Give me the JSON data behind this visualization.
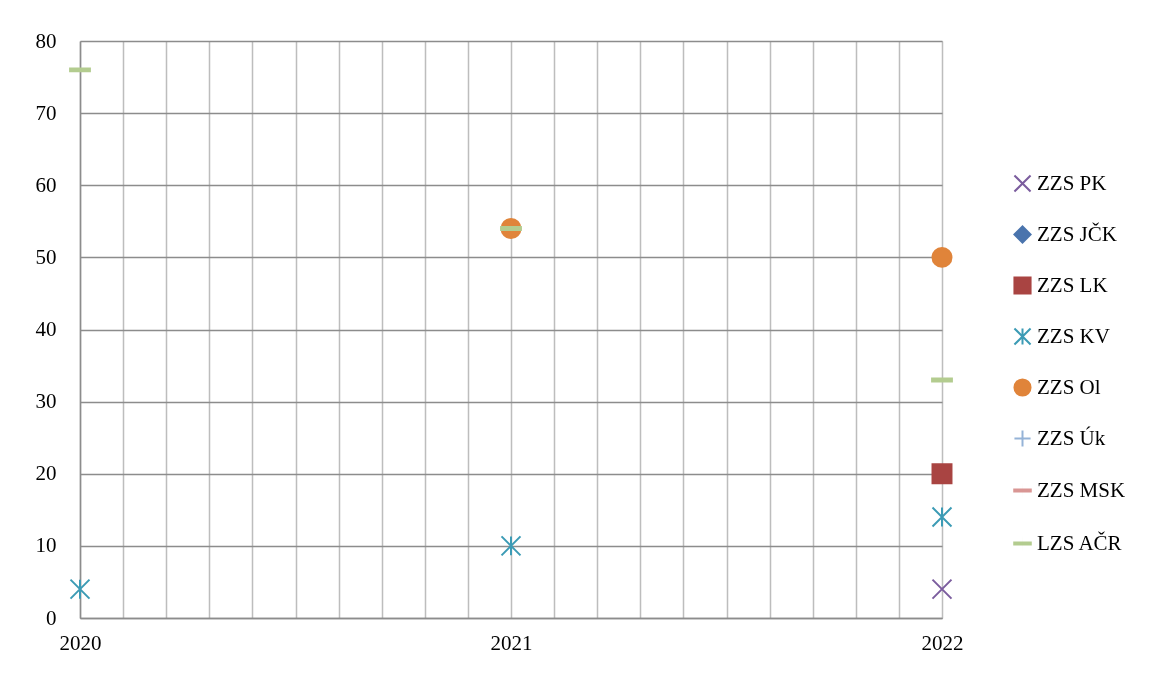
{
  "chart_data": {
    "type": "scatter",
    "x": [
      2020,
      2021,
      2022
    ],
    "xlim": [
      2020,
      2022
    ],
    "xticks": [
      2020,
      {
        "value": 2020.1,
        "label": null
      },
      {
        "value": 2020.2,
        "label": null
      },
      {
        "value": 2020.3,
        "label": null
      },
      {
        "value": 2020.4,
        "label": null
      },
      {
        "value": 2020.5,
        "label": null
      },
      {
        "value": 2020.6,
        "label": null
      },
      {
        "value": 2020.7,
        "label": null
      },
      {
        "value": 2020.8,
        "label": null
      },
      {
        "value": 2020.9,
        "label": null
      },
      2021,
      {
        "value": 2021.1,
        "label": null
      },
      {
        "value": 2021.2,
        "label": null
      },
      {
        "value": 2021.3,
        "label": null
      },
      {
        "value": 2021.4,
        "label": null
      },
      {
        "value": 2021.5,
        "label": null
      },
      {
        "value": 2021.6,
        "label": null
      },
      {
        "value": 2021.7,
        "label": null
      },
      {
        "value": 2021.8,
        "label": null
      },
      {
        "value": 2021.9,
        "label": null
      },
      2022
    ],
    "ylim": [
      0,
      80
    ],
    "yticks": [
      0,
      10,
      20,
      30,
      40,
      50,
      60,
      70,
      80
    ],
    "grid": true,
    "legend": "right",
    "series": [
      {
        "name": "ZZS PK",
        "color": "#7b5d9e",
        "marker": "x",
        "values": [
          null,
          null,
          4
        ]
      },
      {
        "name": "ZZS JČK",
        "color": "#4a74ad",
        "marker": "diamond",
        "values": [
          null,
          null,
          null
        ]
      },
      {
        "name": "ZZS LK",
        "color": "#a94442",
        "marker": "square",
        "values": [
          null,
          null,
          20
        ]
      },
      {
        "name": "ZZS KV",
        "color": "#3c9bb5",
        "marker": "cross",
        "values": [
          4,
          10,
          14
        ]
      },
      {
        "name": "ZZS Ol",
        "color": "#e0843a",
        "marker": "circle",
        "values": [
          null,
          54,
          50
        ]
      },
      {
        "name": "ZZS Úk",
        "color": "#95b3d7",
        "marker": "plus",
        "values": [
          null,
          null,
          null
        ]
      },
      {
        "name": "ZZS MSK",
        "color": "#d99694",
        "values": [
          null,
          null,
          null
        ]
      },
      {
        "name": "LZS AČR",
        "color": "#b3cc8f",
        "values": [
          76,
          54,
          33
        ]
      }
    ]
  }
}
